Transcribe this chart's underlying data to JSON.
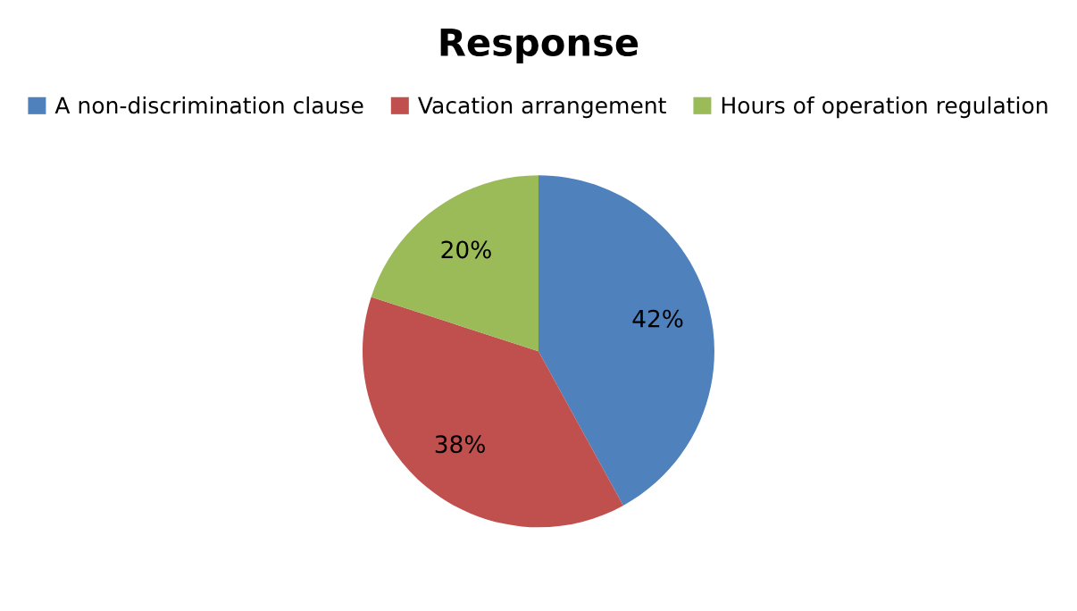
{
  "chart_data": {
    "type": "pie",
    "title": "Response",
    "categories": [
      "A non-discrimination clause",
      "Vacation arrangement",
      "Hours of operation regulation"
    ],
    "values": [
      42,
      38,
      20
    ],
    "colors": [
      "#4f81bd",
      "#c0504d",
      "#9bbb59"
    ],
    "value_labels": [
      "42%",
      "38%",
      "20%"
    ],
    "legend": "top"
  }
}
